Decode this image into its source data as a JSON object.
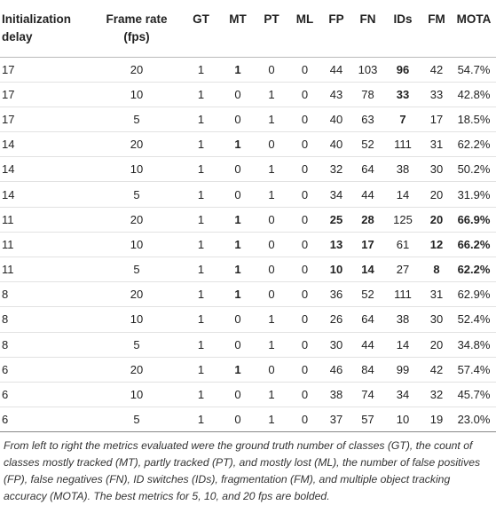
{
  "table": {
    "headers": [
      "Initialization delay",
      "Frame rate (fps)",
      "GT",
      "MT",
      "PT",
      "ML",
      "FP",
      "FN",
      "IDs",
      "FM",
      "MOTA"
    ],
    "rows": [
      [
        "17",
        "20",
        "1",
        "1",
        "0",
        "0",
        "44",
        "103",
        "96",
        "42",
        "54.7%"
      ],
      [
        "17",
        "10",
        "1",
        "0",
        "1",
        "0",
        "43",
        "78",
        "33",
        "33",
        "42.8%"
      ],
      [
        "17",
        "5",
        "1",
        "0",
        "1",
        "0",
        "40",
        "63",
        "7",
        "17",
        "18.5%"
      ],
      [
        "14",
        "20",
        "1",
        "1",
        "0",
        "0",
        "40",
        "52",
        "111",
        "31",
        "62.2%"
      ],
      [
        "14",
        "10",
        "1",
        "0",
        "1",
        "0",
        "32",
        "64",
        "38",
        "30",
        "50.2%"
      ],
      [
        "14",
        "5",
        "1",
        "0",
        "1",
        "0",
        "34",
        "44",
        "14",
        "20",
        "31.9%"
      ],
      [
        "11",
        "20",
        "1",
        "1",
        "0",
        "0",
        "25",
        "28",
        "125",
        "20",
        "66.9%"
      ],
      [
        "11",
        "10",
        "1",
        "1",
        "0",
        "0",
        "13",
        "17",
        "61",
        "12",
        "66.2%"
      ],
      [
        "11",
        "5",
        "1",
        "1",
        "0",
        "0",
        "10",
        "14",
        "27",
        "8",
        "62.2%"
      ],
      [
        "8",
        "20",
        "1",
        "1",
        "0",
        "0",
        "36",
        "52",
        "111",
        "31",
        "62.9%"
      ],
      [
        "8",
        "10",
        "1",
        "0",
        "1",
        "0",
        "26",
        "64",
        "38",
        "30",
        "52.4%"
      ],
      [
        "8",
        "5",
        "1",
        "0",
        "1",
        "0",
        "30",
        "44",
        "14",
        "20",
        "34.8%"
      ],
      [
        "6",
        "20",
        "1",
        "1",
        "0",
        "0",
        "46",
        "84",
        "99",
        "42",
        "57.4%"
      ],
      [
        "6",
        "10",
        "1",
        "0",
        "1",
        "0",
        "38",
        "74",
        "34",
        "32",
        "45.7%"
      ],
      [
        "6",
        "5",
        "1",
        "0",
        "1",
        "0",
        "37",
        "57",
        "10",
        "19",
        "23.0%"
      ]
    ],
    "bold_cells": [
      [
        0,
        3
      ],
      [
        0,
        8
      ],
      [
        1,
        8
      ],
      [
        2,
        8
      ],
      [
        3,
        3
      ],
      [
        6,
        3
      ],
      [
        6,
        6
      ],
      [
        6,
        7
      ],
      [
        6,
        9
      ],
      [
        6,
        10
      ],
      [
        7,
        3
      ],
      [
        7,
        6
      ],
      [
        7,
        7
      ],
      [
        7,
        9
      ],
      [
        7,
        10
      ],
      [
        8,
        3
      ],
      [
        8,
        6
      ],
      [
        8,
        7
      ],
      [
        8,
        9
      ],
      [
        8,
        10
      ],
      [
        9,
        3
      ],
      [
        12,
        3
      ]
    ]
  },
  "caption": "From left to right the metrics evaluated were the ground truth number of classes (GT), the count of classes mostly tracked (MT), partly tracked (PT), and mostly lost (ML), the number of false positives (FP), false negatives (FN), ID switches (IDs), fragmentation (FM), and multiple object tracking accuracy (MOTA). The best metrics for 5, 10, and 20 fps are bolded."
}
